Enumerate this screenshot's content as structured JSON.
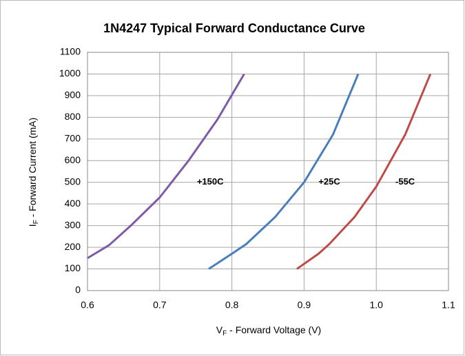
{
  "chart_data": {
    "type": "line",
    "title": "1N4247 Typical Forward Conductance Curve",
    "xlabel": [
      "V",
      "F",
      " - Forward Voltage (V)"
    ],
    "ylabel": [
      "I",
      "F",
      " - Forward Current (mA)"
    ],
    "xlim": [
      0.6,
      1.1
    ],
    "xticks": [
      0.6,
      0.7,
      0.8,
      0.9,
      {
        "value": 1,
        "label": "1.0"
      },
      1.1
    ],
    "ylim": [
      0,
      1100
    ],
    "yticks": [
      0,
      100,
      200,
      300,
      400,
      500,
      600,
      700,
      800,
      900,
      1000,
      1100
    ],
    "grid": true,
    "series": [
      {
        "name": "+150C",
        "color": "#7d5ba6",
        "x": [
          0.6,
          0.63,
          0.66,
          0.7,
          0.74,
          0.78,
          0.817
        ],
        "values": [
          150,
          210,
          300,
          430,
          600,
          790,
          1000
        ]
      },
      {
        "name": "+25C",
        "color": "#4a7ebb",
        "x": [
          0.768,
          0.8,
          0.82,
          0.86,
          0.9,
          0.94,
          0.975
        ],
        "values": [
          100,
          170,
          215,
          340,
          500,
          720,
          1000
        ]
      },
      {
        "name": "-55C",
        "color": "#be4b48",
        "x": [
          0.89,
          0.92,
          0.935,
          0.97,
          1.0,
          1.04,
          1.075
        ],
        "values": [
          100,
          170,
          215,
          340,
          480,
          720,
          1000
        ]
      }
    ],
    "annotations": [
      {
        "text": "+150C",
        "x": 0.77,
        "y": 500
      },
      {
        "text": "+25C",
        "x": 0.935,
        "y": 500
      },
      {
        "text": "-55C",
        "x": 1.04,
        "y": 500
      }
    ]
  }
}
